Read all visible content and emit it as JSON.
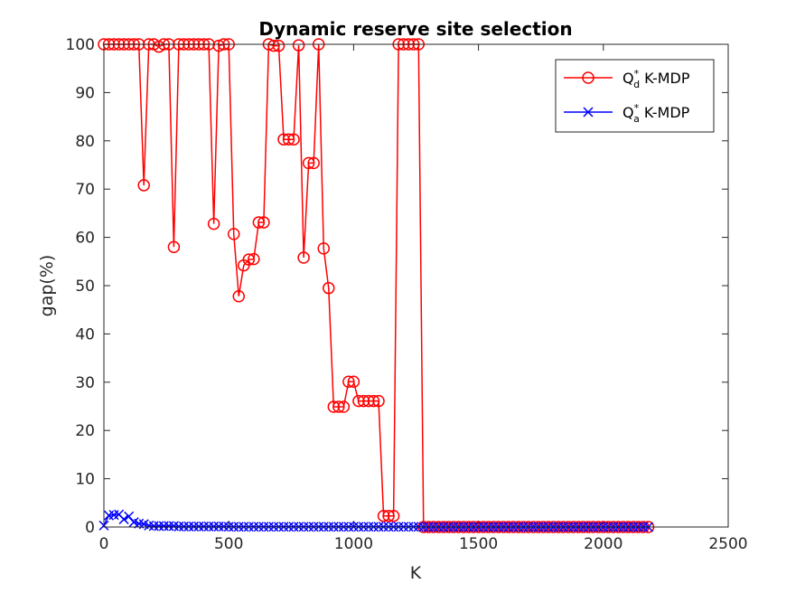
{
  "chart_data": {
    "type": "line",
    "title": "Dynamic reserve site selection",
    "xlabel": "K",
    "ylabel": "gap(%)",
    "xlim": [
      0,
      2500
    ],
    "ylim": [
      0,
      100
    ],
    "xticks": [
      0,
      500,
      1000,
      1500,
      2000,
      2500
    ],
    "yticks": [
      0,
      10,
      20,
      30,
      40,
      50,
      60,
      70,
      80,
      90,
      100
    ],
    "grid": false,
    "legend_position": "top-right",
    "series": [
      {
        "name_base": "Q",
        "name_sup": "*",
        "name_sub": "d",
        "name_rest": " K-MDP",
        "color": "#ff0000",
        "marker": "circle",
        "x": [
          0,
          20,
          40,
          60,
          80,
          100,
          120,
          140,
          160,
          180,
          200,
          220,
          240,
          260,
          280,
          300,
          320,
          340,
          360,
          380,
          400,
          420,
          440,
          460,
          480,
          500,
          520,
          540,
          560,
          580,
          600,
          620,
          640,
          660,
          680,
          700,
          720,
          740,
          760,
          780,
          800,
          820,
          840,
          860,
          880,
          900,
          920,
          940,
          960,
          980,
          1000,
          1020,
          1040,
          1060,
          1080,
          1100,
          1120,
          1140,
          1160,
          1180,
          1200,
          1220,
          1240,
          1260,
          1280,
          1300,
          1320,
          1340,
          1360,
          1380,
          1400,
          1420,
          1440,
          1460,
          1480,
          1500,
          1520,
          1540,
          1560,
          1580,
          1600,
          1620,
          1640,
          1660,
          1680,
          1700,
          1720,
          1740,
          1760,
          1780,
          1800,
          1820,
          1840,
          1860,
          1880,
          1900,
          1920,
          1940,
          1960,
          1980,
          2000,
          2020,
          2040,
          2060,
          2080,
          2100,
          2120,
          2140,
          2160,
          2180
        ],
        "y": [
          100,
          100,
          100,
          100,
          100,
          100,
          100,
          100,
          70.8,
          100,
          100,
          99.5,
          100,
          100,
          58,
          100,
          100,
          100,
          100,
          100,
          100,
          100,
          62.8,
          99.7,
          100,
          100,
          60.7,
          47.8,
          54.2,
          55.4,
          55.5,
          63.1,
          63.1,
          100,
          99.7,
          99.7,
          80.3,
          80.3,
          80.3,
          99.8,
          55.8,
          75.4,
          75.4,
          100,
          57.7,
          49.5,
          24.9,
          24.9,
          24.9,
          30.1,
          30.1,
          26.1,
          26.1,
          26.1,
          26.1,
          26.1,
          2.3,
          2.3,
          2.3,
          100,
          100,
          100,
          100,
          100,
          0,
          0,
          0,
          0,
          0,
          0,
          0,
          0,
          0,
          0,
          0,
          0,
          0,
          0,
          0,
          0,
          0,
          0,
          0,
          0,
          0,
          0,
          0,
          0,
          0,
          0,
          0,
          0,
          0,
          0,
          0,
          0,
          0,
          0,
          0,
          0,
          0,
          0,
          0,
          0,
          0,
          0,
          0,
          0,
          0,
          0
        ]
      },
      {
        "name_base": "Q",
        "name_sup": "*",
        "name_sub": "a",
        "name_rest": " K-MDP",
        "color": "#0000ff",
        "marker": "x",
        "x": [
          0,
          20,
          40,
          60,
          80,
          100,
          120,
          140,
          160,
          180,
          200,
          220,
          240,
          260,
          280,
          300,
          320,
          340,
          360,
          380,
          400,
          420,
          440,
          460,
          480,
          500,
          520,
          540,
          560,
          580,
          600,
          620,
          640,
          660,
          680,
          700,
          720,
          740,
          760,
          780,
          800,
          820,
          840,
          860,
          880,
          900,
          920,
          940,
          960,
          980,
          1000,
          1020,
          1040,
          1060,
          1080,
          1100,
          1120,
          1140,
          1160,
          1180,
          1200,
          1220,
          1240,
          1260,
          1280,
          1300,
          1320,
          1340,
          1360,
          1380,
          1400,
          1420,
          1440,
          1460,
          1480,
          1500,
          1520,
          1540,
          1560,
          1580,
          1600,
          1620,
          1640,
          1660,
          1680,
          1700,
          1720,
          1740,
          1760,
          1780,
          1800,
          1820,
          1840,
          1860,
          1880,
          1900,
          1920,
          1940,
          1960,
          1980,
          2000,
          2020,
          2040,
          2060,
          2080,
          2100,
          2120,
          2140,
          2160,
          2180
        ],
        "y": [
          0.3,
          2.4,
          2.5,
          2.6,
          1.6,
          2.2,
          1.0,
          0.7,
          0.6,
          0.3,
          0.2,
          0.2,
          0.2,
          0.2,
          0.2,
          0.1,
          0.1,
          0.1,
          0.1,
          0.1,
          0.1,
          0.1,
          0.1,
          0.1,
          0.1,
          0.05,
          0.05,
          0.05,
          0.05,
          0.05,
          0.05,
          0.05,
          0.05,
          0.05,
          0.05,
          0.05,
          0.05,
          0.05,
          0.05,
          0.05,
          0.05,
          0.05,
          0.05,
          0.05,
          0.05,
          0.05,
          0.05,
          0.05,
          0.05,
          0.05,
          0.05,
          0.05,
          0.05,
          0.05,
          0.05,
          0.05,
          0.05,
          0.05,
          0.05,
          0.05,
          0.05,
          0.05,
          0.05,
          0.05,
          0,
          0,
          0,
          0,
          0,
          0,
          0,
          0,
          0,
          0,
          0,
          0,
          0,
          0,
          0,
          0,
          0,
          0,
          0,
          0,
          0,
          0,
          0,
          0,
          0,
          0,
          0,
          0,
          0,
          0,
          0,
          0,
          0,
          0,
          0,
          0,
          0,
          0,
          0,
          0,
          0,
          0,
          0,
          0,
          0,
          0
        ]
      }
    ]
  }
}
